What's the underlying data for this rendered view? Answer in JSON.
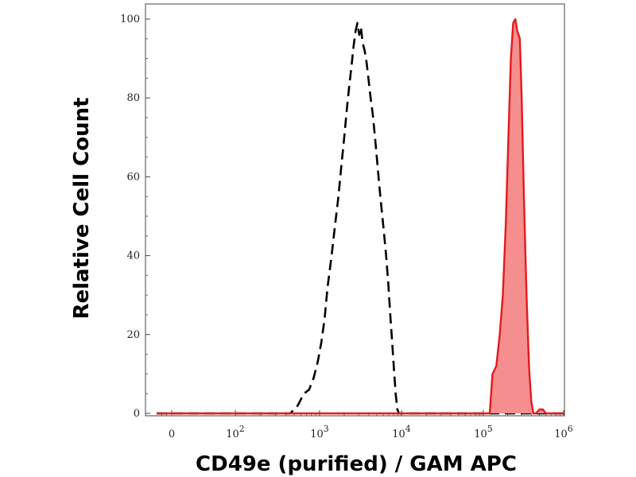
{
  "chart_data": {
    "type": "area",
    "title": "",
    "xlabel": "CD49e (purified) / GAM APC",
    "ylabel": "Relative Cell Count",
    "x_scale": "biexponential",
    "xlim": [
      -300,
      1000000
    ],
    "ylim": [
      0,
      100
    ],
    "grid": false,
    "legend": "none",
    "x_ticks": [
      {
        "value": 0,
        "base": "0",
        "exp": ""
      },
      {
        "value": 100,
        "base": "10",
        "exp": "2"
      },
      {
        "value": 1000,
        "base": "10",
        "exp": "3"
      },
      {
        "value": 10000,
        "base": "10",
        "exp": "4"
      },
      {
        "value": 100000,
        "base": "10",
        "exp": "5"
      },
      {
        "value": 1000000,
        "base": "10",
        "exp": "6"
      }
    ],
    "y_ticks": [
      0,
      20,
      40,
      60,
      80,
      100
    ],
    "series": [
      {
        "style": "dashed",
        "color": "#000000",
        "filled": false,
        "points": [
          [
            -300,
            0
          ],
          [
            -150,
            0
          ],
          [
            0,
            0
          ],
          [
            100,
            0
          ],
          [
            300,
            0
          ],
          [
            450,
            0
          ],
          [
            550,
            2
          ],
          [
            650,
            5
          ],
          [
            750,
            6
          ],
          [
            850,
            9
          ],
          [
            950,
            13
          ],
          [
            1050,
            18
          ],
          [
            1150,
            24
          ],
          [
            1250,
            32
          ],
          [
            1400,
            40
          ],
          [
            1550,
            48
          ],
          [
            1700,
            55
          ],
          [
            1850,
            63
          ],
          [
            2000,
            70
          ],
          [
            2150,
            77
          ],
          [
            2300,
            83
          ],
          [
            2450,
            88
          ],
          [
            2600,
            93
          ],
          [
            2750,
            97
          ],
          [
            2900,
            99
          ],
          [
            3050,
            96
          ],
          [
            3200,
            98
          ],
          [
            3350,
            94
          ],
          [
            3550,
            92
          ],
          [
            3750,
            89
          ],
          [
            3950,
            85
          ],
          [
            4200,
            80
          ],
          [
            4450,
            76
          ],
          [
            4750,
            70
          ],
          [
            5050,
            64
          ],
          [
            5350,
            58
          ],
          [
            5700,
            52
          ],
          [
            6100,
            46
          ],
          [
            6500,
            40
          ],
          [
            6900,
            33
          ],
          [
            7300,
            25
          ],
          [
            7700,
            18
          ],
          [
            8100,
            11
          ],
          [
            8500,
            5
          ],
          [
            8900,
            1
          ],
          [
            9300,
            0
          ],
          [
            20000,
            0
          ],
          [
            100000,
            0
          ],
          [
            1000000,
            0
          ]
        ]
      },
      {
        "style": "solid",
        "color": "#e31a1c",
        "fill": "#f58e8e",
        "filled": true,
        "points": [
          [
            -300,
            0
          ],
          [
            0,
            0
          ],
          [
            1000,
            0
          ],
          [
            10000,
            0
          ],
          [
            100000,
            0
          ],
          [
            120000,
            0
          ],
          [
            130000,
            10
          ],
          [
            145000,
            12
          ],
          [
            160000,
            20
          ],
          [
            175000,
            30
          ],
          [
            190000,
            48
          ],
          [
            205000,
            70
          ],
          [
            220000,
            90
          ],
          [
            235000,
            99
          ],
          [
            250000,
            100
          ],
          [
            265000,
            97
          ],
          [
            285000,
            95
          ],
          [
            300000,
            80
          ],
          [
            320000,
            55
          ],
          [
            345000,
            30
          ],
          [
            370000,
            12
          ],
          [
            395000,
            3
          ],
          [
            420000,
            0
          ],
          [
            450000,
            0
          ],
          [
            500000,
            1
          ],
          [
            550000,
            1
          ],
          [
            600000,
            0
          ],
          [
            1000000,
            0
          ]
        ]
      }
    ]
  }
}
